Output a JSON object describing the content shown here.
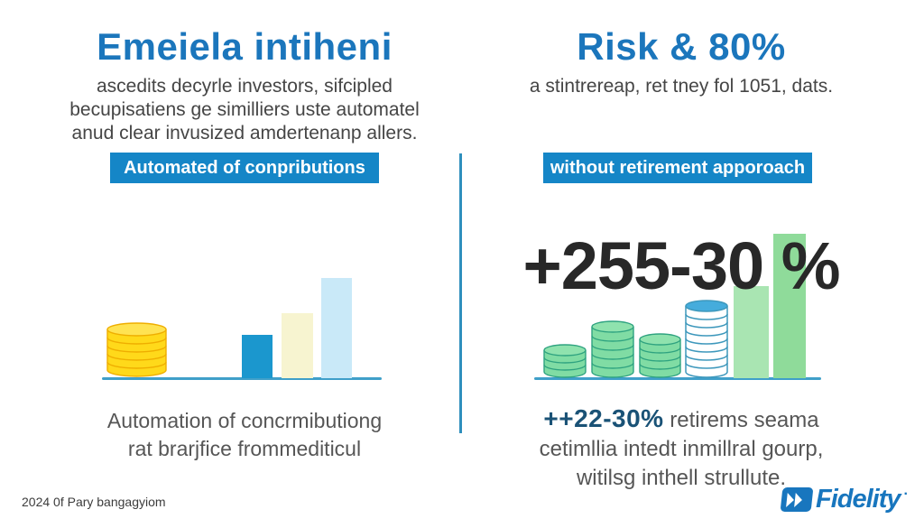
{
  "left_panel": {
    "title": "Emeiela intiheni",
    "subtitle_lines": [
      "ascedits decyrle investors, sifcipled",
      "becupisatiens ge similliers uste automatel",
      "anud clear invusized amdertenanp allers."
    ],
    "banner_label": "Automated of conpributions",
    "caption_lines": [
      "Automation of concrmibutiong",
      "rat brarjfice frommediticul"
    ]
  },
  "right_panel": {
    "title": "Risk & 80%",
    "subtitle": "a stintrereap, ret tney fol 1051, dats.",
    "banner_label": "without retirement apporoach",
    "big_stat": "+255-30 %",
    "caption_stat": "++22-30%",
    "caption_after_stat": " retirems seama",
    "caption_lines": [
      "cetimllia intedt inmillral gourp,",
      "witilsg inthell strullute."
    ]
  },
  "footer": {
    "source_note": "2024 0f Pary bangagyiom",
    "brand_name": "Fidelity",
    "brand_mark": "·"
  },
  "colors": {
    "title_blue": "#1B76BC",
    "banner_blue": "#1586C7",
    "divider_blue": "#2E8FBD",
    "baseline_blue": "#3F9FC9",
    "big_stat_dark": "#282828",
    "caption_stat_blue": "#1A5276",
    "body_gray": "#454545",
    "fidelity_blue": "#1876BE",
    "gold_coin": "#FFD91A",
    "gold_coin_line": "#EFAE00",
    "green_coin": "#80DCA4",
    "green_coin_line": "#2FA380",
    "outline_coin_line": "#3E98BC",
    "outline_coin_top": "#45ACDC"
  },
  "chart_data": [
    {
      "type": "bar",
      "panel": "left",
      "title": "Automated of conpributions",
      "categories": [
        "gold-coin-stack",
        "bar-1",
        "bar-2",
        "bar-3"
      ],
      "values": [
        62,
        48,
        72,
        111
      ],
      "colors": [
        "#FFD91A",
        "#1B97CE",
        "#F7F4D0",
        "#C9E9F8"
      ],
      "xlabel": "",
      "ylabel": "",
      "note": "no axis ticks shown; values are relative pixel heights above baseline"
    },
    {
      "type": "bar",
      "panel": "right",
      "title": "without retirement apporoach",
      "categories": [
        "green-coin-stack-1",
        "green-coin-stack-2",
        "green-coin-stack-3",
        "outline-coin-stack",
        "bar-1",
        "bar-2"
      ],
      "values": [
        38,
        64,
        50,
        87,
        102,
        160
      ],
      "colors": [
        "#80DCA4",
        "#80DCA4",
        "#80DCA4",
        "#FFFFFF",
        "#A9E5B2",
        "#8FDB9A"
      ],
      "annotation": "+255-30 %",
      "xlabel": "",
      "ylabel": "",
      "note": "no axis ticks shown; values are relative pixel heights above baseline"
    }
  ]
}
